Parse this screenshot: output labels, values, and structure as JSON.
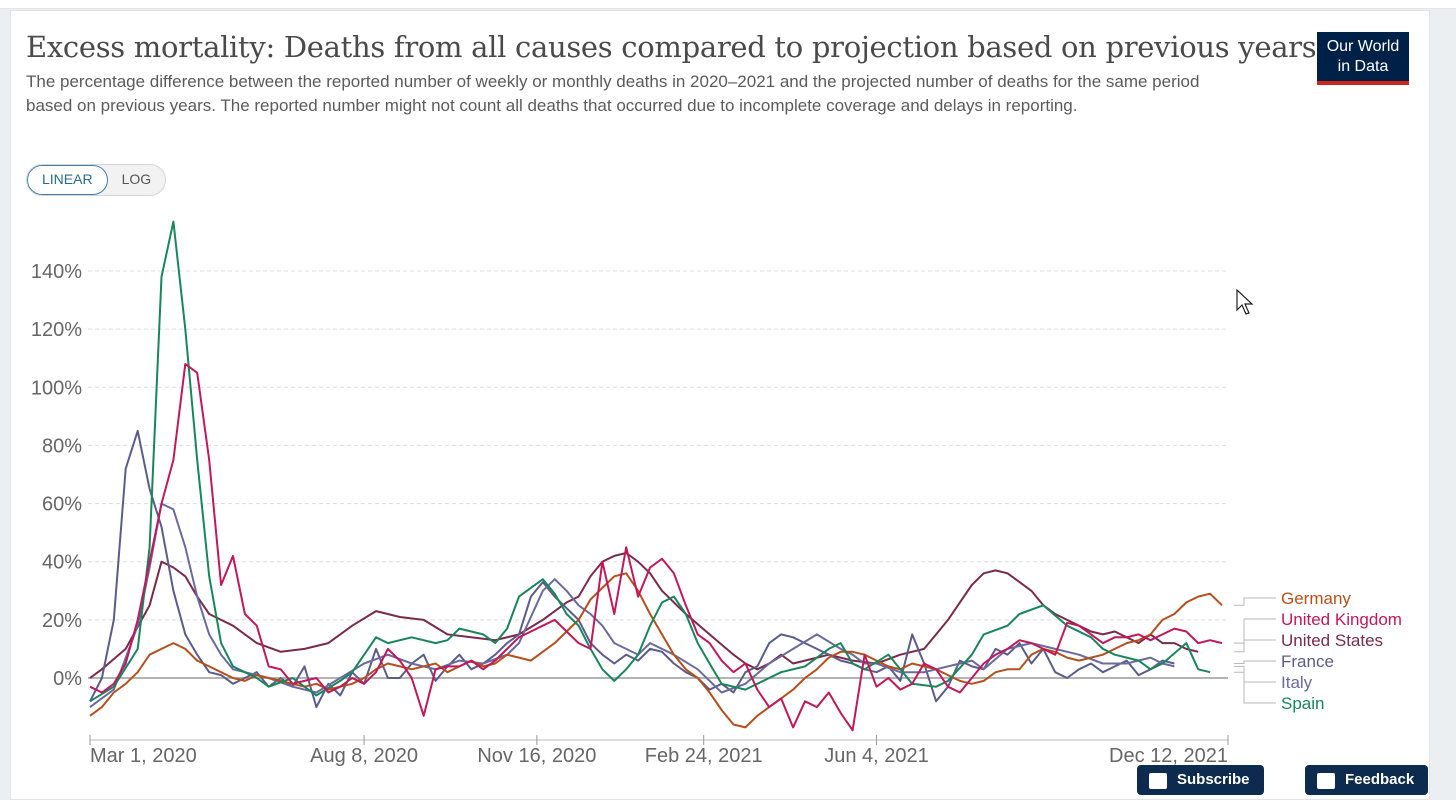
{
  "header": {
    "title": "Excess mortality: Deaths from all causes compared to projection based on previous years",
    "subtitle": "The percentage difference between the reported number of weekly or monthly deaths in 2020–2021 and the projected number of deaths for the same period based on previous years. The reported number might not count all deaths that occurred due to incomplete coverage and delays in reporting.",
    "logo_line1": "Our World",
    "logo_line2": "in Data"
  },
  "controls": {
    "linear_label": "LINEAR",
    "log_label": "LOG",
    "selected": "LINEAR"
  },
  "footer": {
    "subscribe_label": "Subscribe",
    "feedback_label": "Feedback"
  },
  "colors": {
    "Germany": "#b5501d",
    "United Kingdom": "#c2185b",
    "United States": "#7a2a4a",
    "France": "#5c5c8a",
    "Italy": "#6a6aa0",
    "Spain": "#18865a"
  },
  "chart_data": {
    "type": "line",
    "title": "Excess mortality: Deaths from all causes compared to projection based on previous years",
    "xlabel": "",
    "ylabel": "",
    "ylim": [
      -20,
      160
    ],
    "yticks": [
      0,
      20,
      40,
      60,
      80,
      100,
      120,
      140
    ],
    "ytick_labels": [
      "0%",
      "20%",
      "40%",
      "60%",
      "80%",
      "100%",
      "120%",
      "140%"
    ],
    "xlim": [
      0,
      95.5
    ],
    "xticks": [
      0,
      23,
      37.5,
      51.5,
      66,
      95.5
    ],
    "xtick_labels": [
      "Mar 1, 2020",
      "Aug 8, 2020",
      "Nov 16, 2020",
      "Feb 24, 2021",
      "Jun 4, 2021",
      "Dec 12, 2021"
    ],
    "x_unit": "weeks since Mar 1, 2020",
    "grid": true,
    "legend": "right",
    "series": [
      {
        "name": "Spain",
        "x": [
          0,
          2,
          4,
          5,
          6,
          7,
          8,
          9,
          10,
          11,
          12,
          13,
          14,
          15,
          17,
          19,
          21,
          22,
          24,
          25,
          27,
          29,
          30,
          31,
          33,
          34,
          35,
          36,
          38,
          39,
          40,
          41,
          42,
          43,
          44,
          45,
          46,
          47,
          48,
          49,
          50,
          51,
          52,
          53,
          55,
          57,
          58,
          60,
          62,
          63,
          64,
          65,
          67,
          69,
          71,
          72,
          74,
          75,
          77,
          78,
          80,
          82,
          84,
          85,
          86,
          87,
          88,
          89,
          90,
          92,
          93,
          94
        ],
        "y": [
          -8,
          -3,
          10,
          45,
          138,
          157,
          120,
          75,
          35,
          12,
          4,
          2,
          0,
          -3,
          0,
          -6,
          -1,
          2,
          14,
          12,
          14,
          12,
          13,
          17,
          15,
          12,
          17,
          28,
          34,
          29,
          22,
          18,
          10,
          3,
          -1,
          3,
          8,
          18,
          26,
          28,
          22,
          12,
          5,
          -2,
          -4,
          0,
          2,
          4,
          10,
          12,
          5,
          3,
          8,
          -2,
          -3,
          -1,
          8,
          15,
          18,
          22,
          25,
          18,
          14,
          10,
          8,
          7,
          6,
          3,
          5,
          12,
          3,
          2
        ]
      },
      {
        "name": "Italy",
        "x": [
          0,
          2,
          4,
          5,
          6,
          7,
          8,
          9,
          10,
          11,
          12,
          13,
          15,
          17,
          19,
          21,
          23,
          25,
          27,
          29,
          31,
          33,
          35,
          36,
          38,
          39,
          40,
          41,
          42,
          43,
          44,
          45,
          46,
          47,
          49,
          51,
          53,
          55,
          57,
          59,
          61,
          63,
          64,
          65,
          66,
          68,
          70,
          72,
          74,
          75,
          77,
          79,
          81,
          83,
          85,
          87,
          89,
          90,
          91
        ],
        "y": [
          -10,
          -4,
          18,
          38,
          60,
          58,
          45,
          28,
          15,
          8,
          3,
          2,
          0,
          -3,
          -5,
          0,
          5,
          8,
          5,
          3,
          6,
          5,
          8,
          12,
          30,
          34,
          30,
          25,
          22,
          18,
          12,
          10,
          8,
          12,
          8,
          3,
          -5,
          -2,
          5,
          10,
          15,
          10,
          8,
          5,
          5,
          2,
          2,
          4,
          6,
          3,
          10,
          12,
          10,
          8,
          5,
          5,
          7,
          5,
          4
        ]
      },
      {
        "name": "France",
        "x": [
          0,
          1,
          2,
          3,
          4,
          5,
          6,
          7,
          8,
          9,
          10,
          11,
          12,
          13,
          14,
          15,
          16,
          17,
          18,
          19,
          20,
          21,
          22,
          23,
          24,
          25,
          26,
          27,
          28,
          29,
          30,
          31,
          32,
          33,
          34,
          35,
          36,
          37,
          38,
          39,
          40,
          41,
          42,
          43,
          44,
          45,
          46,
          47,
          48,
          49,
          50,
          51,
          52,
          53,
          54,
          55,
          56,
          57,
          58,
          59,
          60,
          61,
          62,
          63,
          64,
          65,
          66,
          67,
          68,
          69,
          70,
          71,
          72,
          73,
          74,
          75,
          76,
          77,
          78,
          79,
          80,
          81,
          82,
          83,
          84,
          85,
          86,
          87,
          88,
          89,
          90,
          91
        ],
        "y": [
          -8,
          0,
          20,
          72,
          85,
          65,
          52,
          30,
          15,
          8,
          2,
          1,
          -2,
          0,
          2,
          -3,
          0,
          -3,
          4,
          -10,
          -2,
          -6,
          2,
          -2,
          10,
          0,
          0,
          5,
          8,
          -1,
          4,
          8,
          3,
          5,
          8,
          12,
          15,
          28,
          33,
          28,
          24,
          20,
          12,
          8,
          5,
          8,
          6,
          10,
          9,
          5,
          2,
          0,
          -4,
          -2,
          -5,
          2,
          4,
          12,
          15,
          14,
          12,
          10,
          8,
          6,
          5,
          3,
          2,
          4,
          -1,
          15,
          5,
          -8,
          -3,
          6,
          4,
          3,
          10,
          8,
          12,
          5,
          10,
          2,
          0,
          3,
          5,
          2,
          4,
          6,
          1,
          3,
          6,
          5
        ]
      },
      {
        "name": "Germany",
        "x": [
          0,
          1,
          2,
          3,
          4,
          5,
          6,
          7,
          8,
          9,
          10,
          11,
          12,
          13,
          14,
          15,
          16,
          17,
          18,
          19,
          20,
          21,
          22,
          23,
          24,
          25,
          26,
          27,
          28,
          29,
          30,
          31,
          32,
          33,
          34,
          35,
          36,
          37,
          38,
          39,
          40,
          41,
          42,
          43,
          44,
          45,
          46,
          47,
          48,
          49,
          50,
          51,
          52,
          53,
          54,
          55,
          56,
          57,
          58,
          59,
          60,
          61,
          62,
          63,
          64,
          65,
          66,
          67,
          68,
          69,
          70,
          71,
          72,
          73,
          74,
          75,
          76,
          77,
          78,
          79,
          80,
          81,
          82,
          83,
          84,
          85,
          86,
          87,
          88,
          89,
          90,
          91,
          92,
          93,
          94,
          95
        ],
        "y": [
          -13,
          -10,
          -5,
          -2,
          2,
          8,
          10,
          12,
          10,
          6,
          4,
          2,
          0,
          -1,
          1,
          0,
          -1,
          -2,
          -3,
          -2,
          -4,
          -3,
          -2,
          0,
          3,
          5,
          4,
          3,
          4,
          5,
          2,
          4,
          6,
          4,
          5,
          8,
          7,
          6,
          9,
          12,
          16,
          20,
          27,
          31,
          35,
          36,
          30,
          22,
          15,
          8,
          3,
          0,
          -5,
          -11,
          -16,
          -17,
          -13,
          -10,
          -7,
          -4,
          0,
          3,
          7,
          9,
          9,
          8,
          6,
          4,
          3,
          5,
          4,
          3,
          1,
          -1,
          -2,
          -1,
          2,
          3,
          3,
          8,
          10,
          9,
          7,
          6,
          7,
          8,
          10,
          12,
          13,
          15,
          20,
          22,
          26,
          28,
          29,
          25
        ]
      },
      {
        "name": "United Kingdom",
        "x": [
          0,
          1,
          2,
          3,
          4,
          5,
          6,
          7,
          8,
          9,
          10,
          11,
          12,
          13,
          14,
          15,
          16,
          17,
          18,
          19,
          20,
          21,
          22,
          23,
          24,
          25,
          26,
          27,
          28,
          29,
          30,
          31,
          32,
          33,
          34,
          35,
          36,
          37,
          38,
          39,
          40,
          41,
          42,
          43,
          44,
          45,
          46,
          47,
          48,
          49,
          50,
          51,
          52,
          53,
          54,
          55,
          56,
          57,
          58,
          59,
          60,
          61,
          62,
          63,
          64,
          65,
          66,
          67,
          68,
          69,
          70,
          71,
          72,
          73,
          74,
          75,
          76,
          77,
          78,
          79,
          80,
          81,
          82,
          83,
          84,
          85,
          86,
          87,
          88,
          89,
          90,
          91,
          92,
          93,
          94,
          95
        ],
        "y": [
          -3,
          -5,
          -2,
          5,
          20,
          40,
          60,
          75,
          108,
          105,
          75,
          32,
          42,
          22,
          18,
          4,
          3,
          -2,
          -1,
          0,
          -5,
          -3,
          0,
          -2,
          2,
          10,
          6,
          0,
          -13,
          3,
          4,
          4,
          6,
          3,
          6,
          10,
          14,
          16,
          18,
          20,
          16,
          12,
          10,
          40,
          22,
          45,
          28,
          38,
          41,
          36,
          25,
          15,
          12,
          6,
          2,
          5,
          -4,
          -10,
          -7,
          -17,
          -8,
          -10,
          -5,
          -12,
          -18,
          8,
          -3,
          0,
          -4,
          -2,
          5,
          3,
          -3,
          -5,
          0,
          5,
          8,
          10,
          13,
          12,
          10,
          8,
          19,
          18,
          15,
          12,
          14,
          14,
          15,
          13,
          15,
          17,
          16,
          12,
          13,
          12
        ]
      },
      {
        "name": "United States",
        "x": [
          0,
          1,
          3,
          5,
          6,
          7,
          8,
          9,
          10,
          11,
          12,
          14,
          16,
          18,
          20,
          22,
          24,
          26,
          28,
          30,
          32,
          34,
          36,
          38,
          40,
          41,
          42,
          43,
          44,
          45,
          46,
          47,
          48,
          50,
          52,
          54,
          55,
          56,
          57,
          58,
          59,
          60,
          62,
          64,
          66,
          68,
          70,
          71,
          72,
          73,
          74,
          75,
          76,
          77,
          78,
          79,
          80,
          81,
          82,
          83,
          84,
          85,
          86,
          87,
          88,
          89,
          90,
          91,
          92,
          93
        ],
        "y": [
          0,
          3,
          10,
          25,
          40,
          38,
          35,
          28,
          22,
          20,
          18,
          12,
          9,
          10,
          12,
          18,
          23,
          21,
          20,
          15,
          14,
          13,
          15,
          20,
          26,
          28,
          35,
          40,
          42,
          43,
          40,
          36,
          30,
          22,
          15,
          8,
          5,
          3,
          5,
          8,
          5,
          6,
          8,
          6,
          5,
          8,
          10,
          15,
          20,
          26,
          32,
          36,
          37,
          36,
          33,
          30,
          25,
          22,
          20,
          18,
          16,
          15,
          16,
          14,
          12,
          15,
          12,
          12,
          10,
          9
        ]
      }
    ]
  }
}
